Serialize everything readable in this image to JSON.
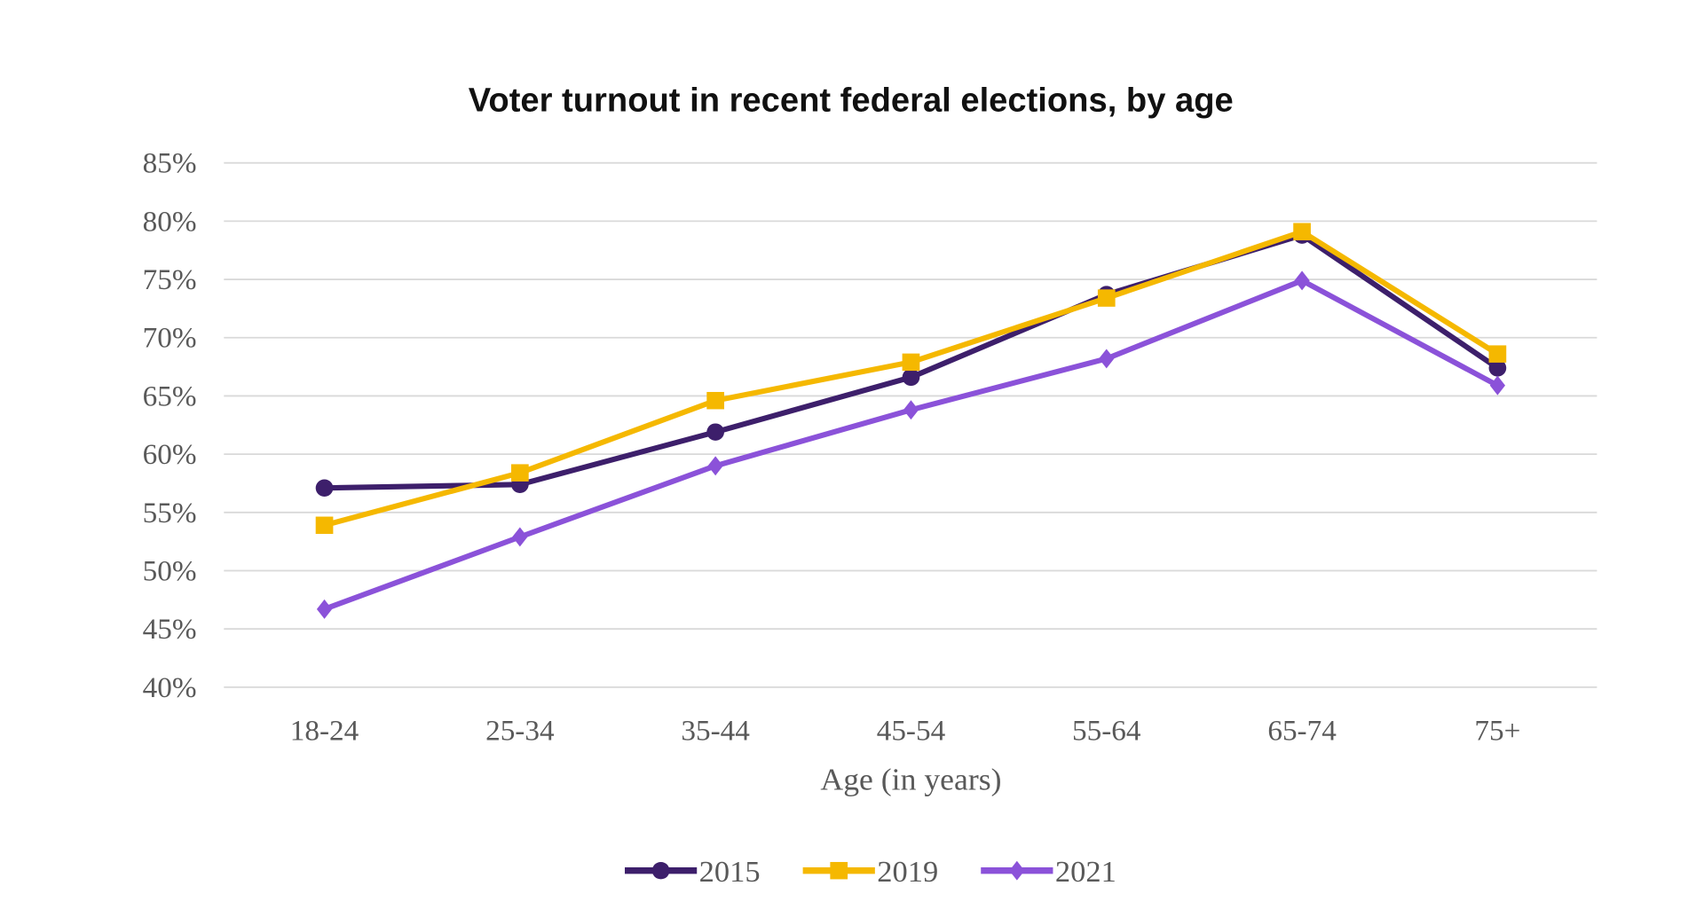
{
  "chart_data": {
    "type": "line",
    "title": "Voter turnout in recent federal elections, by age",
    "xlabel": "Age (in years)",
    "ylabel": "",
    "categories": [
      "18-24",
      "25-34",
      "35-44",
      "45-54",
      "55-64",
      "65-74",
      "75+"
    ],
    "ylim": [
      40,
      85
    ],
    "yticks": [
      40,
      45,
      50,
      55,
      60,
      65,
      70,
      75,
      80,
      85
    ],
    "ytick_labels": [
      "40%",
      "45%",
      "50%",
      "55%",
      "60%",
      "65%",
      "70%",
      "75%",
      "80%",
      "85%"
    ],
    "grid": true,
    "legend_position": "bottom",
    "series": [
      {
        "name": "2015",
        "color": "#3d1f6b",
        "marker": "circle",
        "values": [
          57.1,
          57.4,
          61.9,
          66.6,
          73.7,
          78.8,
          67.4
        ]
      },
      {
        "name": "2019",
        "color": "#f5b800",
        "marker": "square",
        "values": [
          53.9,
          58.4,
          64.6,
          67.9,
          73.4,
          79.1,
          68.6
        ]
      },
      {
        "name": "2021",
        "color": "#8b52d9",
        "marker": "diamond",
        "values": [
          46.7,
          52.9,
          59.0,
          63.8,
          68.2,
          74.9,
          65.9
        ]
      }
    ]
  }
}
